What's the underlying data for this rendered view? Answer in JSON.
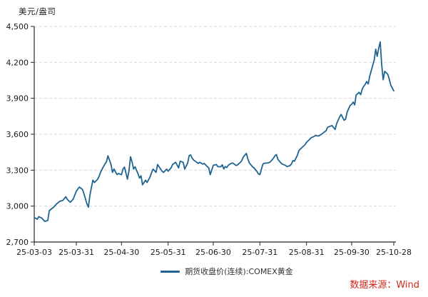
{
  "chart_data": {
    "type": "line",
    "ylabel": "美元/盎司",
    "source": "数据来源：Wind",
    "legend_position": "bottom-center",
    "grid": "horizontal-dashed",
    "ylim": [
      2700,
      4500
    ],
    "yticks": [
      4500,
      4200,
      3900,
      3600,
      3300,
      3000,
      2700
    ],
    "ytick_labels": [
      "4,500",
      "4,200",
      "3,900",
      "3,600",
      "3,300",
      "3,000",
      "2,700"
    ],
    "x_max": 239,
    "xticks": [
      {
        "label": "25-03-03",
        "day": 0
      },
      {
        "label": "25-03-31",
        "day": 28
      },
      {
        "label": "25-04-30",
        "day": 58
      },
      {
        "label": "25-05-31",
        "day": 89
      },
      {
        "label": "25-06-30",
        "day": 119
      },
      {
        "label": "25-07-31",
        "day": 150
      },
      {
        "label": "25-08-31",
        "day": 181
      },
      {
        "label": "25-09-30",
        "day": 211
      },
      {
        "label": "25-10-28",
        "day": 239
      }
    ],
    "colors": {
      "line": "#1f6391",
      "grid": "#d9d9d9",
      "axis": "#262626",
      "text": "#1a1a1a",
      "source": "#d2271c"
    },
    "series": [
      {
        "name": "期货收盘价(连续):COMEX黄金",
        "color": "#1f6391",
        "points": [
          [
            0,
            2905
          ],
          [
            2,
            2890
          ],
          [
            3,
            2912
          ],
          [
            5,
            2900
          ],
          [
            7,
            2872
          ],
          [
            9,
            2880
          ],
          [
            10,
            2962
          ],
          [
            13,
            2992
          ],
          [
            15,
            3020
          ],
          [
            17,
            3040
          ],
          [
            19,
            3048
          ],
          [
            21,
            3078
          ],
          [
            22,
            3055
          ],
          [
            24,
            3032
          ],
          [
            26,
            3060
          ],
          [
            28,
            3125
          ],
          [
            30,
            3159
          ],
          [
            32,
            3140
          ],
          [
            33,
            3105
          ],
          [
            35,
            3020
          ],
          [
            36,
            2991
          ],
          [
            37,
            3090
          ],
          [
            39,
            3216
          ],
          [
            40,
            3197
          ],
          [
            42,
            3222
          ],
          [
            43,
            3245
          ],
          [
            44,
            3280
          ],
          [
            46,
            3330
          ],
          [
            48,
            3370
          ],
          [
            49,
            3420
          ],
          [
            51,
            3350
          ],
          [
            52,
            3281
          ],
          [
            53,
            3309
          ],
          [
            55,
            3263
          ],
          [
            56,
            3272
          ],
          [
            58,
            3262
          ],
          [
            59,
            3309
          ],
          [
            60,
            3325
          ],
          [
            62,
            3225
          ],
          [
            63,
            3300
          ],
          [
            64,
            3412
          ],
          [
            65,
            3370
          ],
          [
            66,
            3309
          ],
          [
            67,
            3328
          ],
          [
            69,
            3270
          ],
          [
            70,
            3234
          ],
          [
            71,
            3253
          ],
          [
            72,
            3178
          ],
          [
            74,
            3216
          ],
          [
            75,
            3197
          ],
          [
            77,
            3244
          ],
          [
            78,
            3280
          ],
          [
            79,
            3309
          ],
          [
            81,
            3281
          ],
          [
            82,
            3347
          ],
          [
            84,
            3310
          ],
          [
            85,
            3291
          ],
          [
            86,
            3281
          ],
          [
            88,
            3309
          ],
          [
            89,
            3291
          ],
          [
            91,
            3320
          ],
          [
            92,
            3347
          ],
          [
            94,
            3366
          ],
          [
            96,
            3319
          ],
          [
            97,
            3375
          ],
          [
            99,
            3366
          ],
          [
            100,
            3309
          ],
          [
            102,
            3360
          ],
          [
            103,
            3422
          ],
          [
            104,
            3427
          ],
          [
            105,
            3400
          ],
          [
            106,
            3384
          ],
          [
            108,
            3366
          ],
          [
            109,
            3356
          ],
          [
            110,
            3366
          ],
          [
            112,
            3350
          ],
          [
            113,
            3356
          ],
          [
            115,
            3330
          ],
          [
            116,
            3319
          ],
          [
            117,
            3262
          ],
          [
            118,
            3300
          ],
          [
            119,
            3340
          ],
          [
            121,
            3347
          ],
          [
            122,
            3330
          ],
          [
            124,
            3328
          ],
          [
            125,
            3345
          ],
          [
            126,
            3310
          ],
          [
            127,
            3330
          ],
          [
            128,
            3322
          ],
          [
            129,
            3340
          ],
          [
            130,
            3350
          ],
          [
            131,
            3356
          ],
          [
            132,
            3360
          ],
          [
            134,
            3340
          ],
          [
            135,
            3342
          ],
          [
            137,
            3365
          ],
          [
            138,
            3380
          ],
          [
            139,
            3410
          ],
          [
            141,
            3440
          ],
          [
            142,
            3395
          ],
          [
            143,
            3360
          ],
          [
            145,
            3330
          ],
          [
            146,
            3320
          ],
          [
            148,
            3290
          ],
          [
            149,
            3270
          ],
          [
            150,
            3262
          ],
          [
            152,
            3350
          ],
          [
            153,
            3358
          ],
          [
            155,
            3360
          ],
          [
            156,
            3362
          ],
          [
            157,
            3370
          ],
          [
            159,
            3400
          ],
          [
            160,
            3420
          ],
          [
            161,
            3430
          ],
          [
            162,
            3390
          ],
          [
            164,
            3360
          ],
          [
            165,
            3350
          ],
          [
            167,
            3340
          ],
          [
            168,
            3330
          ],
          [
            170,
            3338
          ],
          [
            171,
            3352
          ],
          [
            172,
            3380
          ],
          [
            173,
            3375
          ],
          [
            175,
            3426
          ],
          [
            176,
            3465
          ],
          [
            178,
            3490
          ],
          [
            180,
            3513
          ],
          [
            181,
            3532
          ],
          [
            183,
            3556
          ],
          [
            184,
            3571
          ],
          [
            186,
            3581
          ],
          [
            187,
            3590
          ],
          [
            189,
            3585
          ],
          [
            191,
            3600
          ],
          [
            192,
            3610
          ],
          [
            194,
            3629
          ],
          [
            195,
            3658
          ],
          [
            197,
            3668
          ],
          [
            198,
            3672
          ],
          [
            200,
            3640
          ],
          [
            201,
            3687
          ],
          [
            203,
            3745
          ],
          [
            204,
            3765
          ],
          [
            206,
            3716
          ],
          [
            207,
            3726
          ],
          [
            208,
            3784
          ],
          [
            210,
            3840
          ],
          [
            211,
            3850
          ],
          [
            212,
            3868
          ],
          [
            213,
            3845
          ],
          [
            214,
            3927
          ],
          [
            216,
            3950
          ],
          [
            217,
            3930
          ],
          [
            218,
            3975
          ],
          [
            219,
            4000
          ],
          [
            220,
            4015
          ],
          [
            221,
            4040
          ],
          [
            222,
            4020
          ],
          [
            223,
            4085
          ],
          [
            224,
            4130
          ],
          [
            226,
            4220
          ],
          [
            227,
            4310
          ],
          [
            228,
            4250
          ],
          [
            229,
            4320
          ],
          [
            230,
            4370
          ],
          [
            231,
            4180
          ],
          [
            232,
            4055
          ],
          [
            233,
            4125
          ],
          [
            235,
            4100
          ],
          [
            236,
            4060
          ],
          [
            237,
            4010
          ],
          [
            239,
            3962
          ]
        ]
      }
    ]
  }
}
